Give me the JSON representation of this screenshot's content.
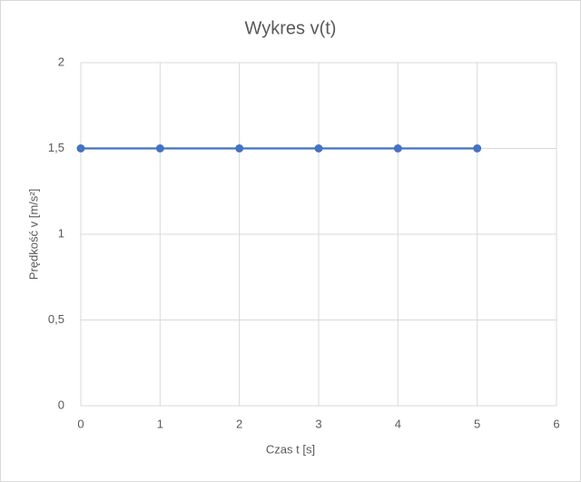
{
  "chart_data": {
    "type": "line",
    "title": "Wykres v(t)",
    "x_label": "Czas t [s]",
    "y_label": "Prędkość v [m/s²]",
    "x": [
      0,
      1,
      2,
      3,
      4,
      5
    ],
    "values": [
      1.5,
      1.5,
      1.5,
      1.5,
      1.5,
      1.5
    ],
    "color": "#4472c4",
    "xlim": [
      0,
      6
    ],
    "xticks": [
      0,
      1,
      2,
      3,
      4,
      5,
      6
    ],
    "ylim": [
      0,
      2
    ],
    "yticks": [
      0,
      {
        "value": 0.5,
        "label": "0,5"
      },
      1,
      {
        "value": 1.5,
        "label": "1,5"
      },
      2
    ],
    "grid": true
  }
}
